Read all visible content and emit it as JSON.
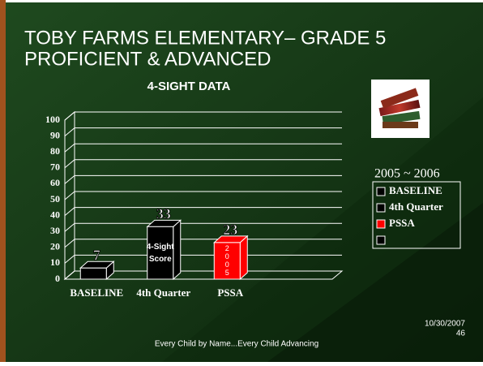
{
  "slide": {
    "title_lines": [
      "TOBY FARMS ELEMENTARY– GRADE 5",
      "PROFICIENT & ADVANCED"
    ],
    "footer": "Every Child by Name...Every Child Advancing",
    "date": "10/30/2007",
    "page": "46"
  },
  "chart_data": {
    "type": "bar",
    "title": "4-SIGHT DATA",
    "legend_title": "2005 ~ 2006",
    "categories": [
      "BASELINE",
      "4th Quarter",
      "PSSA",
      null
    ],
    "values": [
      7,
      33,
      23,
      null
    ],
    "colors": [
      "#000000",
      "#000000",
      "#ff0000",
      "#000000"
    ],
    "annotations": [
      [],
      [
        "4-Sight",
        "Score"
      ],
      [
        "2",
        "0",
        "0",
        "5"
      ],
      []
    ],
    "ylim": [
      0,
      100
    ],
    "yticks": [
      0,
      10,
      20,
      30,
      40,
      50,
      60,
      70,
      80,
      90,
      100
    ],
    "grid": true,
    "legend": "right"
  }
}
